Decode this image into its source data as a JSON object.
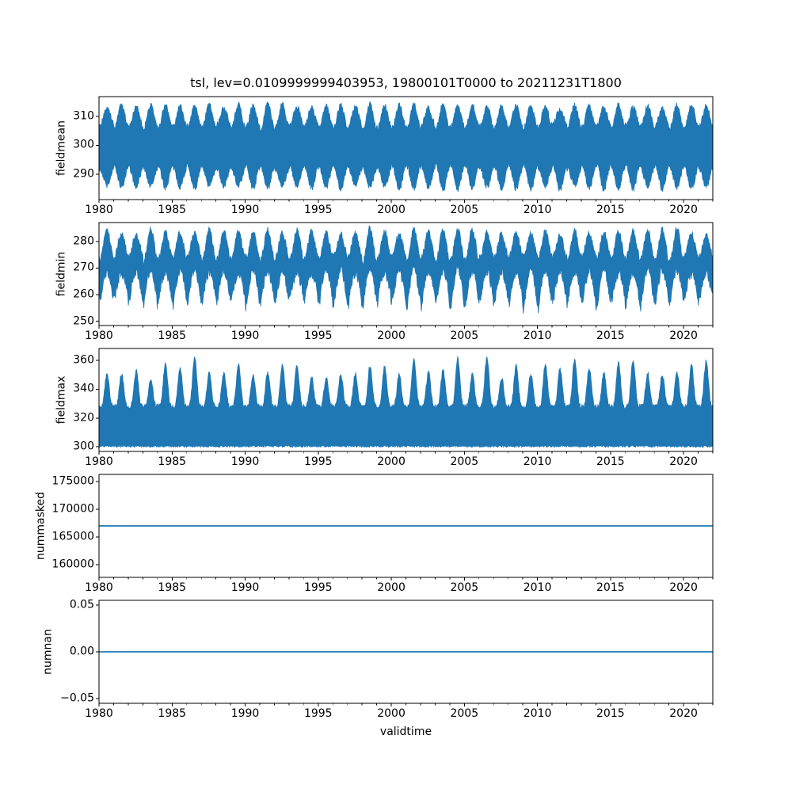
{
  "title": "tsl, lev=0.0109999999403953, 19800101T0000 to 20211231T1800",
  "xlabel": "validtime",
  "line_color": "#1f77b4",
  "axis_color": "#000000",
  "background_color": "#ffffff",
  "x_axis": {
    "xlim": [
      1980,
      2022
    ],
    "major_ticks": [
      1980,
      1985,
      1990,
      1995,
      2000,
      2005,
      2010,
      2015,
      2020
    ],
    "major_tick_labels": [
      "1980",
      "1985",
      "1990",
      "1995",
      "2000",
      "2005",
      "2010",
      "2015",
      "2020"
    ],
    "minor_tick_step_years": 1,
    "start_label": "19800101T0000",
    "end_label": "20211231T1800"
  },
  "chart_data": [
    {
      "type": "line",
      "name": "fieldmean",
      "ylabel": "fieldmean",
      "ylim": [
        281.2,
        316.8
      ],
      "yticks": [
        290,
        300,
        310
      ],
      "ytick_labels": [
        "290",
        "300",
        "310"
      ],
      "summary": "Dense 6-hourly series 1980-2022 forming an annual band; upper envelope oscillates yearly between about 306 and 313.5, lower envelope between about 292.5 and 285; band is widest mid-year.",
      "series": {
        "kind": "seasonal_band",
        "seed": 7,
        "top": {
          "base": 309.9,
          "amp": 3.6,
          "phase": 1,
          "noise": 1.0
        },
        "bottom": {
          "base": 289.0,
          "amp": 3.6,
          "phase": -1,
          "noise": 1.0
        },
        "noise": 1.0,
        "year_jitter": 0.22
      }
    },
    {
      "type": "line",
      "name": "fieldmin",
      "ylabel": "fieldmin",
      "ylim": [
        248.4,
        287.1
      ],
      "yticks": [
        250,
        260,
        270,
        280
      ],
      "ytick_labels": [
        "250",
        "260",
        "270",
        "280"
      ],
      "summary": "Annual band; upper envelope about 272.5 to 285.5, lower envelope about 259 to 269 with sharp narrow winter spikes dipping to about 250.",
      "series": {
        "kind": "seasonal_band",
        "seed": 13,
        "top": {
          "base": 278.6,
          "amp": 5.2,
          "phase": 1,
          "noise": 1.3
        },
        "bottom": {
          "base": 264.5,
          "amp": 4.3,
          "phase": 1,
          "noise": 1.8
        },
        "noise": 1.4,
        "winter_spike": 6.0,
        "year_jitter": 0.25
      }
    },
    {
      "type": "line",
      "name": "fieldmax",
      "ylabel": "fieldmax",
      "ylim": [
        296.8,
        368.2
      ],
      "yticks": [
        300,
        320,
        340,
        360
      ],
      "ytick_labels": [
        "300",
        "320",
        "340",
        "360"
      ],
      "summary": "Lower envelope nearly flat at about 300.5; sharp annual summer peaks reaching roughly 345 to 367, winter minima of the upper envelope near 327-332.",
      "series": {
        "kind": "seasonal_band",
        "seed": 29,
        "top": {
          "base": 328.0,
          "amp": 27.0,
          "peak_power": 2.3,
          "noise": 1.6
        },
        "bottom": {
          "base": 300.4,
          "amp": 0.0,
          "phase": 1,
          "noise": 0.7
        },
        "noise": 1.5,
        "year_jitter": 0.3
      }
    },
    {
      "type": "line",
      "name": "nummasked",
      "ylabel": "nummasked",
      "ylim": [
        157700,
        176300
      ],
      "yticks": [
        160000,
        165000,
        170000,
        175000
      ],
      "ytick_labels": [
        "160000",
        "165000",
        "170000",
        "175000"
      ],
      "summary": "Constant horizontal line at 167000 for the whole period.",
      "series": {
        "kind": "constant",
        "value": 167000
      }
    },
    {
      "type": "line",
      "name": "numnan",
      "ylabel": "numnan",
      "ylim": [
        -0.055,
        0.055
      ],
      "yticks": [
        -0.05,
        0,
        0.05
      ],
      "ytick_labels": [
        "−0.05",
        "0.00",
        "0.05"
      ],
      "summary": "Constant horizontal line at 0.00 for the whole period.",
      "series": {
        "kind": "constant",
        "value": 0
      }
    }
  ]
}
